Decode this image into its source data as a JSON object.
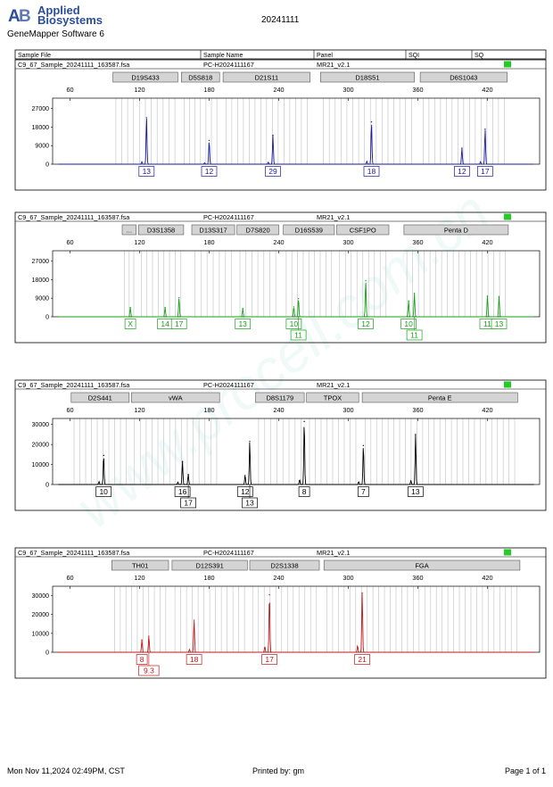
{
  "header": {
    "logo_line1": "Applied",
    "logo_line2": "Biosystems",
    "software": "GeneMapper Software 6",
    "title": "20241111"
  },
  "table_header": {
    "sample_file": "Sample File",
    "sample_name": "Sample Name",
    "panel": "Panel",
    "sqi": "SQI",
    "sq": "SQ"
  },
  "footer": {
    "date": "Mon Nov 11,2024 02:49PM, CST",
    "printed_by": "Printed by: gm",
    "page": "Page 1 of 1"
  },
  "watermark": "www.procell.com.cn",
  "colors": {
    "blue": "#1a1a9a",
    "green": "#16a016",
    "black": "#000000",
    "red": "#c01818",
    "quality_flag": "#22cc22",
    "bin_lines": "#c8c8c8",
    "locus_fill": "#d4d4d4"
  },
  "chart_data": [
    {
      "type": "electropherogram",
      "dye": "blue",
      "sample_file": "C9_67_Sample_20241111_163587.fsa",
      "sample_name": "PC-H2024111167",
      "panel": "MR21_v2.1",
      "xlim": [
        45,
        465
      ],
      "x_ticks": [
        60,
        120,
        180,
        240,
        300,
        360,
        420
      ],
      "ylim": [
        0,
        32000
      ],
      "y_ticks": [
        0,
        9000,
        18000,
        27000
      ],
      "y_tick_labels": [
        "0",
        "9000",
        "18000",
        "27000"
      ],
      "loci": [
        {
          "name": "D19S433",
          "start": 97,
          "end": 153
        },
        {
          "name": "D5S818",
          "start": 156,
          "end": 189
        },
        {
          "name": "D21S11",
          "start": 192,
          "end": 267
        },
        {
          "name": "D18S51",
          "start": 276,
          "end": 357
        },
        {
          "name": "D6S1043",
          "start": 362,
          "end": 437
        }
      ],
      "peaks": [
        {
          "x": 126,
          "y": 22500,
          "label": "13"
        },
        {
          "x": 180,
          "y": 11500,
          "label": "12"
        },
        {
          "x": 235,
          "y": 14000,
          "label": "29"
        },
        {
          "x": 320,
          "y": 20500,
          "label": "18"
        },
        {
          "x": 398,
          "y": 7800,
          "label": "12"
        },
        {
          "x": 418,
          "y": 17000,
          "label": "17"
        }
      ],
      "minor_peaks": [
        {
          "x": 122,
          "y": 1200
        },
        {
          "x": 176,
          "y": 700
        },
        {
          "x": 231,
          "y": 1000
        },
        {
          "x": 316,
          "y": 1400
        },
        {
          "x": 414,
          "y": 1200
        }
      ]
    },
    {
      "type": "electropherogram",
      "dye": "green",
      "sample_file": "C9_67_Sample_20241111_163587.fsa",
      "sample_name": "PC-H2024111167",
      "panel": "MR21_v2.1",
      "xlim": [
        45,
        465
      ],
      "x_ticks": [
        60,
        120,
        180,
        240,
        300,
        360,
        420
      ],
      "ylim": [
        0,
        32000
      ],
      "y_ticks": [
        0,
        9000,
        18000,
        27000
      ],
      "y_tick_labels": [
        "0",
        "9000",
        "18000",
        "27000"
      ],
      "loci": [
        {
          "name": "...",
          "start": 105,
          "end": 117
        },
        {
          "name": "D3S1358",
          "start": 119,
          "end": 158
        },
        {
          "name": "D13S317",
          "start": 165,
          "end": 202
        },
        {
          "name": "D7S820",
          "start": 204,
          "end": 240
        },
        {
          "name": "D16S539",
          "start": 244,
          "end": 288
        },
        {
          "name": "CSF1PO",
          "start": 290,
          "end": 335
        },
        {
          "name": "Penta D",
          "start": 348,
          "end": 438
        }
      ],
      "peaks": [
        {
          "x": 112,
          "y": 4500,
          "label": "X"
        },
        {
          "x": 142,
          "y": 4500,
          "label": "14"
        },
        {
          "x": 154,
          "y": 9200,
          "label": "17"
        },
        {
          "x": 209,
          "y": 4000,
          "label": "13"
        },
        {
          "x": 253,
          "y": 4800,
          "label": "10"
        },
        {
          "x": 257,
          "y": 8800,
          "label": "11",
          "row": 2
        },
        {
          "x": 315,
          "y": 17500,
          "label": "12"
        },
        {
          "x": 352,
          "y": 7700,
          "label": "10"
        },
        {
          "x": 357,
          "y": 11300,
          "label": "11",
          "row": 2
        },
        {
          "x": 420,
          "y": 10000,
          "label": "11"
        },
        {
          "x": 430,
          "y": 9800,
          "label": "13"
        }
      ],
      "minor_peaks": []
    },
    {
      "type": "electropherogram",
      "dye": "black",
      "sample_file": "C9_67_Sample_20241111_163587.fsa",
      "sample_name": "PC-H2024111167",
      "panel": "MR21_v2.1",
      "xlim": [
        45,
        465
      ],
      "x_ticks": [
        60,
        120,
        180,
        240,
        300,
        360,
        420
      ],
      "ylim": [
        0,
        33000
      ],
      "y_ticks": [
        0,
        10000,
        20000,
        30000
      ],
      "y_tick_labels": [
        "0",
        "10000",
        "20000",
        "30000"
      ],
      "loci": [
        {
          "name": "D2S441",
          "start": 61,
          "end": 111
        },
        {
          "name": "vWA",
          "start": 113,
          "end": 189
        },
        {
          "name": "D8S1179",
          "start": 220,
          "end": 262
        },
        {
          "name": "TPOX",
          "start": 264,
          "end": 309
        },
        {
          "name": "Penta E",
          "start": 312,
          "end": 446
        }
      ],
      "peaks": [
        {
          "x": 89,
          "y": 14500,
          "label": "10"
        },
        {
          "x": 157,
          "y": 11500,
          "label": "16"
        },
        {
          "x": 162,
          "y": 5000,
          "label": "17",
          "row": 2
        },
        {
          "x": 211,
          "y": 4500,
          "label": "12"
        },
        {
          "x": 215,
          "y": 21500,
          "label": "13",
          "row": 2
        },
        {
          "x": 262,
          "y": 31500,
          "label": "8"
        },
        {
          "x": 313,
          "y": 19500,
          "label": "7"
        },
        {
          "x": 358,
          "y": 25000,
          "label": "13"
        }
      ],
      "minor_peaks": [
        {
          "x": 85,
          "y": 1500
        },
        {
          "x": 153,
          "y": 1200
        },
        {
          "x": 258,
          "y": 2500
        },
        {
          "x": 309,
          "y": 1500
        },
        {
          "x": 354,
          "y": 2000
        }
      ]
    },
    {
      "type": "electropherogram",
      "dye": "red",
      "sample_file": "C9_67_Sample_20241111_163587.fsa",
      "sample_name": "PC-H2024111167",
      "panel": "MR21_v2.1",
      "xlim": [
        45,
        465
      ],
      "x_ticks": [
        60,
        120,
        180,
        240,
        300,
        360,
        420
      ],
      "ylim": [
        0,
        35000
      ],
      "y_ticks": [
        0,
        10000,
        20000,
        30000
      ],
      "y_tick_labels": [
        "0",
        "10000",
        "20000",
        "30000"
      ],
      "loci": [
        {
          "name": "TH01",
          "start": 96,
          "end": 145
        },
        {
          "name": "D12S391",
          "start": 148,
          "end": 213
        },
        {
          "name": "D2S1338",
          "start": 215,
          "end": 275
        },
        {
          "name": "FGA",
          "start": 279,
          "end": 448
        }
      ],
      "peaks": [
        {
          "x": 122,
          "y": 6500,
          "label": "8"
        },
        {
          "x": 128,
          "y": 8500,
          "label": "9.3",
          "row": 2
        },
        {
          "x": 167,
          "y": 17000,
          "label": "18"
        },
        {
          "x": 232,
          "y": 30500,
          "label": "17"
        },
        {
          "x": 312,
          "y": 31500,
          "label": "21"
        }
      ],
      "minor_peaks": [
        {
          "x": 163,
          "y": 1500
        },
        {
          "x": 228,
          "y": 3000
        },
        {
          "x": 308,
          "y": 3500
        }
      ]
    }
  ]
}
